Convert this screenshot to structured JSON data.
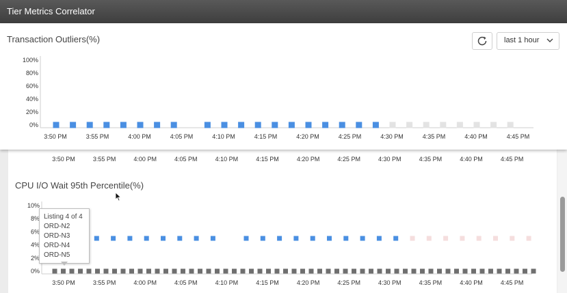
{
  "window": {
    "title": "Tier Metrics Correlator"
  },
  "toolbar": {
    "refresh_icon": "refresh-icon",
    "range_value": "last 1 hour",
    "dropdown_icon": "chevron-down-icon"
  },
  "time_labels": [
    "3:50 PM",
    "3:55 PM",
    "4:00 PM",
    "4:05 PM",
    "4:10 PM",
    "4:15 PM",
    "4:20 PM",
    "4:25 PM",
    "4:30 PM",
    "4:35 PM",
    "4:40 PM",
    "4:45 PM"
  ],
  "chart_data": [
    {
      "type": "scatter",
      "title": "Transaction Outliers(%)",
      "y_ticks": [
        "0%",
        "20%",
        "40%",
        "60%",
        "80%",
        "100%"
      ],
      "ylim": [
        0,
        100
      ],
      "x_ticks": [
        "3:50 PM",
        "3:55 PM",
        "4:00 PM",
        "4:05 PM",
        "4:10 PM",
        "4:15 PM",
        "4:20 PM",
        "4:25 PM",
        "4:30 PM",
        "4:35 PM",
        "4:40 PM",
        "4:45 PM"
      ],
      "series": [
        {
          "color": "#4a8fe2",
          "values": [
            0,
            0,
            0,
            0,
            0,
            0,
            0,
            0,
            null,
            0,
            0,
            0,
            0,
            0,
            0,
            0,
            0,
            0,
            0,
            0,
            null,
            null,
            null,
            null,
            null,
            null,
            null,
            null
          ]
        },
        {
          "color": "#e3e3e3",
          "values": [
            null,
            null,
            null,
            null,
            null,
            null,
            null,
            null,
            null,
            null,
            null,
            null,
            null,
            null,
            null,
            null,
            null,
            null,
            null,
            null,
            0,
            0,
            0,
            0,
            0,
            0,
            0,
            0
          ]
        }
      ]
    },
    {
      "type": "scatter",
      "title": "CPU I/O Wait 95th Percentile(%)",
      "y_ticks": [
        "0%",
        "2%",
        "4%",
        "6%",
        "8%",
        "10%"
      ],
      "ylim": [
        0,
        10
      ],
      "x_ticks": [
        "3:50 PM",
        "3:55 PM",
        "4:00 PM",
        "4:05 PM",
        "4:10 PM",
        "4:15 PM",
        "4:20 PM",
        "4:25 PM",
        "4:30 PM",
        "4:35 PM",
        "4:40 PM",
        "4:45 PM"
      ],
      "series": [
        {
          "color": "#4a8fe2",
          "values": [
            null,
            5,
            5,
            5,
            5,
            5,
            5,
            5,
            5,
            null,
            5,
            5,
            5,
            5,
            5,
            5,
            5,
            5,
            5,
            5,
            null,
            null,
            null,
            null,
            null,
            null,
            null,
            null
          ]
        },
        {
          "color": "#f5dede",
          "values": [
            null,
            null,
            null,
            null,
            null,
            null,
            null,
            null,
            null,
            null,
            null,
            null,
            null,
            null,
            null,
            null,
            null,
            null,
            null,
            null,
            5,
            5,
            5,
            5,
            5,
            5,
            5,
            5
          ]
        },
        {
          "color": "#6f6f6f",
          "values": [
            0,
            0,
            0,
            0,
            0,
            0,
            0,
            0,
            0,
            0,
            0,
            0,
            0,
            0,
            0,
            0,
            0,
            0,
            0,
            0,
            0,
            0,
            0,
            0,
            0,
            0,
            0,
            0,
            0,
            0,
            0,
            0,
            0,
            0,
            0,
            0,
            0,
            0,
            0,
            0,
            0,
            0,
            0,
            0,
            0,
            0,
            0,
            0,
            0,
            0,
            0,
            0,
            0,
            0,
            0,
            0,
            0
          ]
        }
      ],
      "tooltip": {
        "lines": [
          "Listing 4 of 4",
          "ORD-N2",
          "ORD-N3",
          "ORD-N4",
          "ORD-N5"
        ]
      }
    }
  ]
}
